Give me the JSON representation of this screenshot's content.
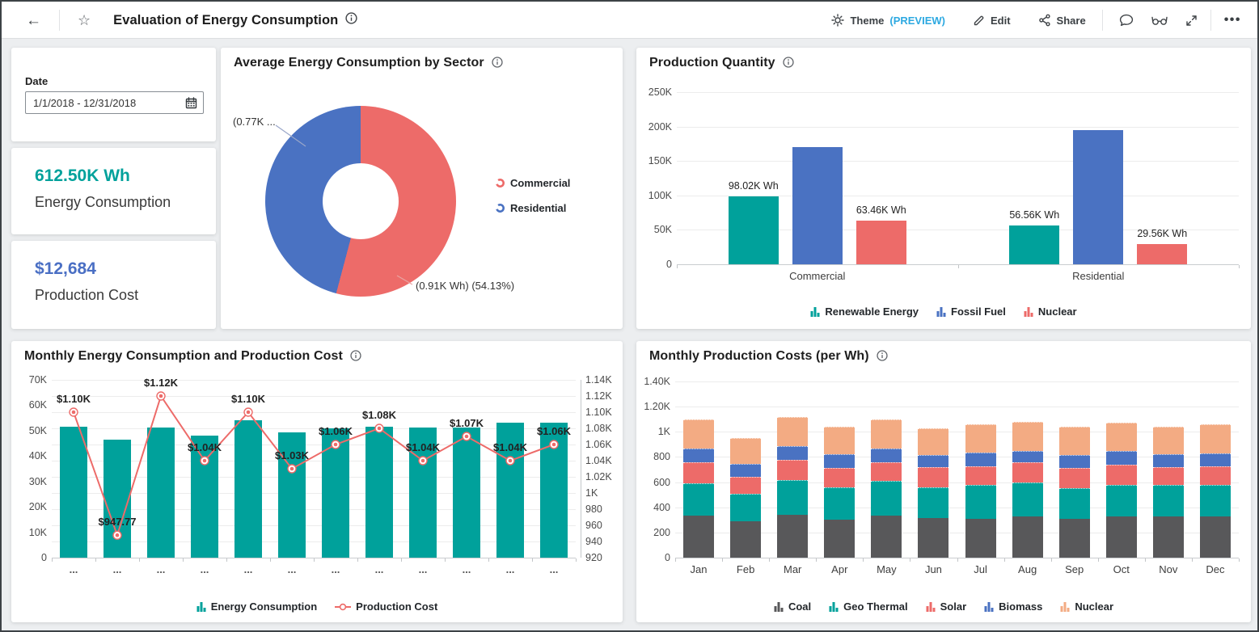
{
  "header": {
    "title": "Evaluation of Energy Consumption",
    "theme_label": "Theme",
    "theme_preview": "(PREVIEW)",
    "edit_label": "Edit",
    "share_label": "Share",
    "more_label": "•••"
  },
  "filters": {
    "date_label": "Date",
    "date_value": "1/1/2018 - 12/31/2018"
  },
  "kpis": [
    {
      "value": "612.50K Wh",
      "label": "Energy Consumption",
      "color": "#00A19B"
    },
    {
      "value": "$12,684",
      "label": "Production Cost",
      "color": "#4A6FC4"
    }
  ],
  "colors": {
    "teal": "#00A19B",
    "blue": "#4A72C2",
    "red": "#ED6B69",
    "orange": "#F3AB83",
    "coal": "#58585A",
    "preview_blue": "#2DA9E1",
    "background": "#ECEEF0"
  },
  "chart_data": [
    {
      "type": "pie",
      "title": "Average Energy Consumption by Sector",
      "donut": true,
      "legend_position": "right",
      "slices": [
        {
          "label": "Commercial",
          "percent": 54.13,
          "color": "#ED6B69",
          "callout": "(0.91K Wh) (54.13%)"
        },
        {
          "label": "Residential",
          "percent": 45.87,
          "color": "#4A72C2",
          "callout": "(0.77K ..."
        }
      ]
    },
    {
      "type": "bar",
      "title": "Production Quantity",
      "categories": [
        "Commercial",
        "Residential"
      ],
      "series": [
        {
          "name": "Renewable Energy",
          "color": "#00A19B",
          "values": [
            98020,
            56560
          ],
          "labels": [
            "98.02K Wh",
            "56.56K Wh"
          ]
        },
        {
          "name": "Fossil Fuel",
          "color": "#4A72C2",
          "values": [
            170000,
            195000
          ],
          "labels": [
            "",
            ""
          ]
        },
        {
          "name": "Nuclear",
          "color": "#ED6B69",
          "values": [
            63460,
            29560
          ],
          "labels": [
            "63.46K Wh",
            "29.56K Wh"
          ]
        }
      ],
      "ylim": [
        0,
        250000
      ],
      "yticks": [
        "250K",
        "200K",
        "150K",
        "100K",
        "50K",
        "0"
      ],
      "grid": true,
      "legend_position": "bottom"
    },
    {
      "type": "combo bar+line",
      "title": "Monthly Energy Consumption and Production Cost",
      "x_labels": [
        "...",
        "...",
        "...",
        "...",
        "...",
        "...",
        "...",
        "...",
        "...",
        "...",
        "...",
        "..."
      ],
      "bar_series": {
        "name": "Energy Consumption",
        "color": "#00A19B",
        "axis": "left",
        "values": [
          51500,
          46500,
          51200,
          48000,
          54000,
          49200,
          50800,
          51600,
          51200,
          51200,
          53200,
          53000
        ]
      },
      "line_series": {
        "name": "Production Cost",
        "color": "#ED6B69",
        "axis": "right",
        "values": [
          1100,
          947.77,
          1120,
          1040,
          1100,
          1030,
          1060,
          1080,
          1040,
          1070,
          1040,
          1060
        ],
        "labels": [
          "$1.10K",
          "$947.77",
          "$1.12K",
          "$1.04K",
          "$1.10K",
          "$1.03K",
          "$1.06K",
          "$1.08K",
          "$1.04K",
          "$1.07K",
          "$1.04K",
          "$1.06K"
        ]
      },
      "left_ylim": [
        0,
        70000
      ],
      "left_yticks": [
        "70K",
        "60K",
        "50K",
        "40K",
        "30K",
        "20K",
        "10K",
        "0"
      ],
      "right_ylim": [
        920,
        1140
      ],
      "right_yticks": [
        "1.14K",
        "1.12K",
        "1.10K",
        "1.08K",
        "1.06K",
        "1.04K",
        "1.02K",
        "1K",
        "980",
        "960",
        "940",
        "920"
      ],
      "grid": true,
      "legend_position": "bottom"
    },
    {
      "type": "bar stacked",
      "title": "Monthly Production Costs (per Wh)",
      "categories": [
        "Jan",
        "Feb",
        "Mar",
        "Apr",
        "May",
        "Jun",
        "Jul",
        "Aug",
        "Sep",
        "Oct",
        "Nov",
        "Dec"
      ],
      "series": [
        {
          "name": "Coal",
          "color": "#58585A",
          "values": [
            335,
            290,
            340,
            305,
            335,
            315,
            310,
            325,
            310,
            325,
            325,
            325
          ]
        },
        {
          "name": "Geo Thermal",
          "color": "#00A19B",
          "values": [
            255,
            220,
            275,
            255,
            275,
            245,
            270,
            275,
            240,
            255,
            250,
            255
          ]
        },
        {
          "name": "Solar",
          "color": "#ED6B69",
          "values": [
            165,
            135,
            160,
            155,
            150,
            160,
            145,
            155,
            160,
            160,
            145,
            145
          ]
        },
        {
          "name": "Biomass",
          "color": "#4A72C2",
          "values": [
            110,
            100,
            110,
            105,
            105,
            95,
            110,
            95,
            105,
            105,
            100,
            105
          ]
        },
        {
          "name": "Nuclear",
          "color": "#F3AB83",
          "values": [
            235,
            205,
            235,
            220,
            235,
            215,
            225,
            230,
            225,
            225,
            220,
            230
          ]
        }
      ],
      "ylim": [
        0,
        1400
      ],
      "yticks": [
        "1.40K",
        "1.20K",
        "1K",
        "800",
        "600",
        "400",
        "200",
        "0"
      ],
      "grid": true,
      "legend_position": "bottom"
    }
  ]
}
